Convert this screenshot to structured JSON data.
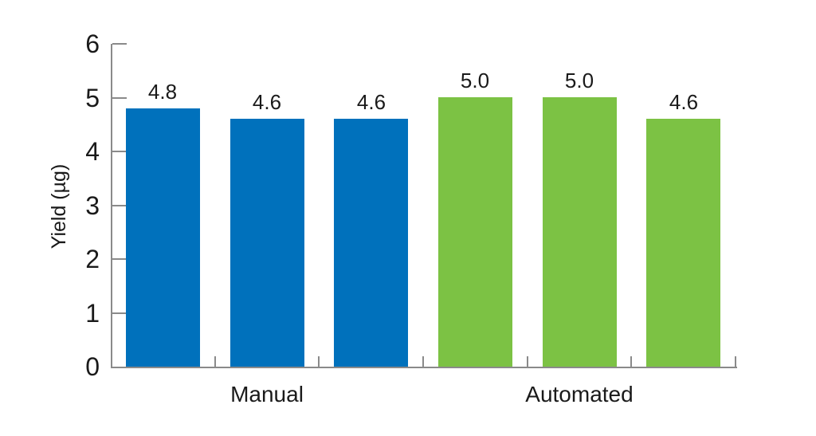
{
  "chart_data": {
    "type": "bar",
    "title": "",
    "xlabel": "",
    "ylabel": "Yield (µg)",
    "ylim": [
      0,
      6
    ],
    "yticks": [
      0,
      1,
      2,
      3,
      4,
      5,
      6
    ],
    "grid": false,
    "legend": "none",
    "categories": [
      "Manual",
      "Automated"
    ],
    "groups": [
      {
        "label": "Manual",
        "color": "#0071BC",
        "values": [
          4.8,
          4.6,
          4.6
        ],
        "value_labels": [
          "4.8",
          "4.6",
          "4.6"
        ]
      },
      {
        "label": "Automated",
        "color": "#7CC244",
        "values": [
          5.0,
          5.0,
          4.6
        ],
        "value_labels": [
          "5.0",
          "5.0",
          "4.6"
        ]
      }
    ],
    "axis_color": "#8a8a8a",
    "text_color": "#1a1a1a"
  }
}
